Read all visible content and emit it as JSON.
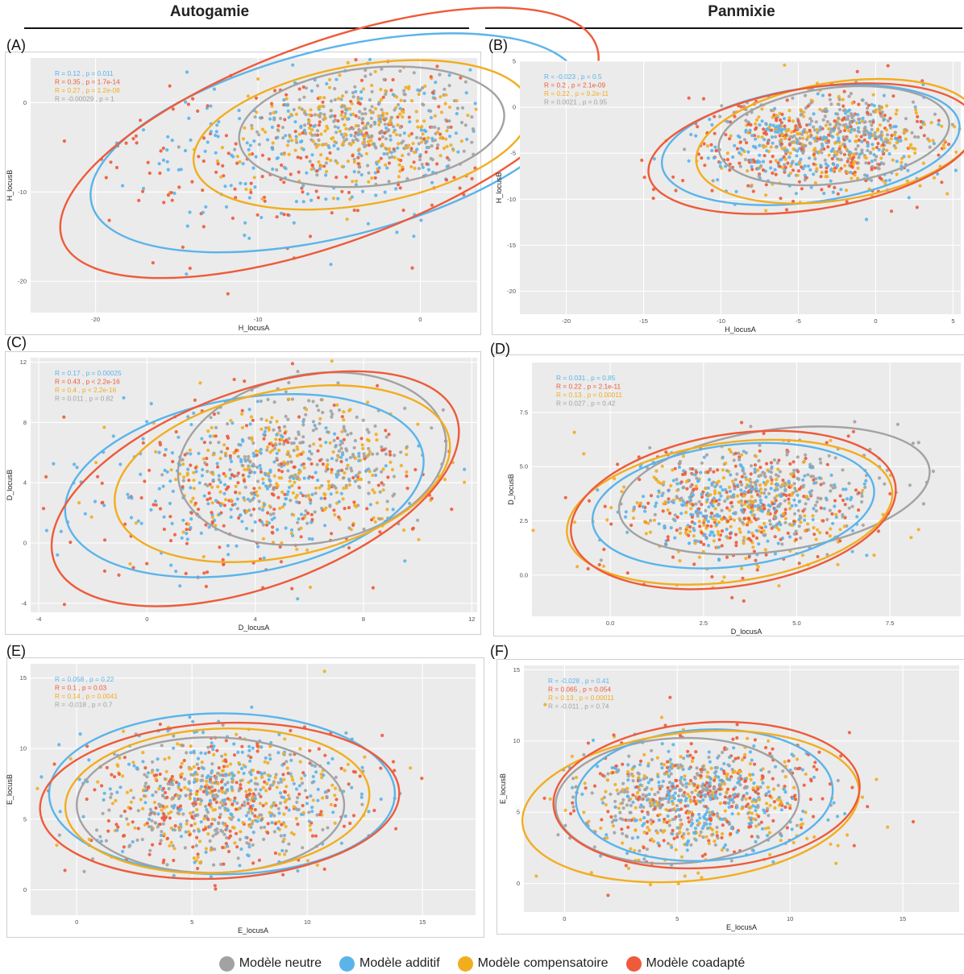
{
  "columns": {
    "left_title": "Autogamie",
    "right_title": "Panmixie"
  },
  "legend": [
    {
      "label": "Modèle neutre",
      "color": "#a2a2a2"
    },
    {
      "label": "Modèle additif",
      "color": "#5ab4ea"
    },
    {
      "label": "Modèle compensatoire",
      "color": "#f2ad1f"
    },
    {
      "label": "Modèle coadapté",
      "color": "#ee5a3a"
    }
  ],
  "chart_data": [
    {
      "panel": "(A)",
      "type": "scatter",
      "xlabel": "H_locusA",
      "ylabel": "H_locusB",
      "xlim": [
        -24,
        3.5
      ],
      "ylim": [
        -23.5,
        5
      ],
      "xticks": [
        -20,
        -10,
        0
      ],
      "yticks": [
        -20,
        -10,
        0
      ],
      "stats": [
        {
          "series": "Modèle additif",
          "text": "R = 0.12 , p = 0.011"
        },
        {
          "series": "Modèle coadapté",
          "text": "R = 0.35 , p = 1.7e-14"
        },
        {
          "series": "Modèle compensatoire",
          "text": "R = 0.27 , p = 1.2e-08"
        },
        {
          "series": "Modèle neutre",
          "text": "R = -0.00029 , p = 1"
        }
      ],
      "ellipses": [
        {
          "series": "Modèle neutre",
          "cx": -3,
          "cy": -2.7,
          "rx": 8.2,
          "ry": 6.6,
          "angle": -6
        },
        {
          "series": "Modèle additif",
          "cx": -5.2,
          "cy": -4.5,
          "rx": 15.5,
          "ry": 10.5,
          "angle": -14
        },
        {
          "series": "Modèle compensatoire",
          "cx": -3.6,
          "cy": -3.6,
          "rx": 10.5,
          "ry": 7.8,
          "angle": -10
        },
        {
          "series": "Modèle coadapté",
          "cx": -5.6,
          "cy": -4.5,
          "rx": 17.5,
          "ry": 11.2,
          "angle": -20
        }
      ]
    },
    {
      "panel": "(B)",
      "type": "scatter",
      "xlabel": "H_locusA",
      "ylabel": "H_locusB",
      "xlim": [
        -23,
        5.5
      ],
      "ylim": [
        -22.5,
        5
      ],
      "xticks": [
        -20,
        -15,
        -10,
        -5,
        0,
        5
      ],
      "yticks": [
        -20,
        -15,
        -10,
        -5,
        0,
        5
      ],
      "stats": [
        {
          "series": "Modèle additif",
          "text": "R = -0.023 , p = 0.5"
        },
        {
          "series": "Modèle coadapté",
          "text": "R = 0.2 , p = 2.1e-09"
        },
        {
          "series": "Modèle compensatoire",
          "text": "R = 0.22 , p = 9.2e-11"
        },
        {
          "series": "Modèle neutre",
          "text": "R = 0.0021 , p = 0.95"
        }
      ],
      "ellipses": [
        {
          "series": "Modèle neutre",
          "cx": -2.7,
          "cy": -3.1,
          "rx": 7.5,
          "ry": 5.2,
          "angle": -7
        },
        {
          "series": "Modèle additif",
          "cx": -4.2,
          "cy": -4.1,
          "rx": 9.7,
          "ry": 6.2,
          "angle": -8
        },
        {
          "series": "Modèle compensatoire",
          "cx": -2.5,
          "cy": -3.7,
          "rx": 9.2,
          "ry": 6.4,
          "angle": -9
        },
        {
          "series": "Modèle coadapté",
          "cx": -4.1,
          "cy": -4.5,
          "rx": 10.7,
          "ry": 6.6,
          "angle": -9
        }
      ]
    },
    {
      "panel": "(C)",
      "type": "scatter",
      "xlabel": "D_locusA",
      "ylabel": "D_locusB",
      "xlim": [
        -4.3,
        12.2
      ],
      "ylim": [
        -4.6,
        12.3
      ],
      "xticks": [
        -4,
        0,
        4,
        8,
        12
      ],
      "yticks": [
        -4,
        0,
        4,
        8,
        12
      ],
      "stats": [
        {
          "series": "Modèle additif",
          "text": "R = 0.17 , p = 0.00025"
        },
        {
          "series": "Modèle coadapté",
          "text": "R = 0.43 , p < 2.2e-16"
        },
        {
          "series": "Modèle compensatoire",
          "text": "R = 0.4 , p < 2.2e-16"
        },
        {
          "series": "Modèle neutre",
          "text": "R = 0.011 , p = 0.82"
        }
      ],
      "ellipses": [
        {
          "series": "Modèle neutre",
          "cx": 6.1,
          "cy": 5.6,
          "rx": 5.0,
          "ry": 5.6,
          "angle": -10
        },
        {
          "series": "Modèle additif",
          "cx": 3.6,
          "cy": 3.8,
          "rx": 6.7,
          "ry": 5.8,
          "angle": -10
        },
        {
          "series": "Modèle compensatoire",
          "cx": 5.0,
          "cy": 4.6,
          "rx": 6.3,
          "ry": 5.5,
          "angle": -12
        },
        {
          "series": "Modèle coadapté",
          "cx": 4.0,
          "cy": 3.6,
          "rx": 7.9,
          "ry": 6.5,
          "angle": -20
        }
      ]
    },
    {
      "panel": "(D)",
      "type": "scatter",
      "xlabel": "D_locusA",
      "ylabel": "D_locusB",
      "xlim": [
        -2.1,
        9.4
      ],
      "ylim": [
        -1.9,
        9.8
      ],
      "xticks": [
        0.0,
        2.5,
        5.0,
        7.5
      ],
      "yticks": [
        0.0,
        2.5,
        5.0,
        7.5
      ],
      "yticklabels": [
        "0.0",
        "2.5",
        "5.0",
        "7.5"
      ],
      "xticklabels": [
        "0.0",
        "2.5",
        "5.0",
        "7.5"
      ],
      "stats": [
        {
          "series": "Modèle additif",
          "text": "R = 0.031 , p = 0.85"
        },
        {
          "series": "Modèle coadapté",
          "text": "R = 0.22 , p = 2.1e-11"
        },
        {
          "series": "Modèle compensatoire",
          "text": "R = 0.13 , p = 0.00011"
        },
        {
          "series": "Modèle neutre",
          "text": "R = 0.027 , p = 0.42"
        }
      ],
      "ellipses": [
        {
          "series": "Modèle neutre",
          "cx": 4.4,
          "cy": 3.9,
          "rx": 4.2,
          "ry": 2.8,
          "angle": -8
        },
        {
          "series": "Modèle additif",
          "cx": 3.3,
          "cy": 3.2,
          "rx": 3.8,
          "ry": 2.8,
          "angle": -7
        },
        {
          "series": "Modèle compensatoire",
          "cx": 3.2,
          "cy": 2.9,
          "rx": 4.4,
          "ry": 3.2,
          "angle": -8
        },
        {
          "series": "Modèle coadapté",
          "cx": 3.3,
          "cy": 3.0,
          "rx": 4.4,
          "ry": 3.5,
          "angle": -9
        }
      ]
    },
    {
      "panel": "(E)",
      "type": "scatter",
      "xlabel": "E_locusA",
      "ylabel": "E_locusB",
      "xlim": [
        -2,
        17.3
      ],
      "ylim": [
        -1.8,
        16
      ],
      "xticks": [
        0,
        5,
        10,
        15
      ],
      "yticks": [
        0,
        5,
        10,
        15
      ],
      "stats": [
        {
          "series": "Modèle additif",
          "text": "R = 0.058 , p = 0.22"
        },
        {
          "series": "Modèle coadapté",
          "text": "R = 0.1 , p = 0.03"
        },
        {
          "series": "Modèle compensatoire",
          "text": "R = 0.14 , p = 0.0041"
        },
        {
          "series": "Modèle neutre",
          "text": "R = -0.018 , p = 0.7"
        }
      ],
      "ellipses": [
        {
          "series": "Modèle neutre",
          "cx": 5.8,
          "cy": 6.0,
          "rx": 5.8,
          "ry": 4.8,
          "angle": 0
        },
        {
          "series": "Modèle additif",
          "cx": 6.3,
          "cy": 6.8,
          "rx": 7.5,
          "ry": 5.7,
          "angle": 0
        },
        {
          "series": "Modèle compensatoire",
          "cx": 6.1,
          "cy": 6.3,
          "rx": 6.6,
          "ry": 5.1,
          "angle": -3
        },
        {
          "series": "Modèle coadapté",
          "cx": 6.2,
          "cy": 6.3,
          "rx": 7.8,
          "ry": 5.5,
          "angle": -3
        }
      ]
    },
    {
      "panel": "(F)",
      "type": "scatter",
      "xlabel": "E_locusA",
      "ylabel": "E_locusB",
      "xlim": [
        -1.8,
        17.5
      ],
      "ylim": [
        -2,
        15.3
      ],
      "xticks": [
        0,
        5,
        10,
        15
      ],
      "yticks": [
        0,
        5,
        10,
        15
      ],
      "stats": [
        {
          "series": "Modèle additif",
          "text": "R = -0.028 , p = 0.41"
        },
        {
          "series": "Modèle coadapté",
          "text": "R = 0.065 , p = 0.054"
        },
        {
          "series": "Modèle compensatoire",
          "text": "R = 0.13 , p = 0.00011"
        },
        {
          "series": "Modèle neutre",
          "text": "R = -0.011 , p = 0.74"
        }
      ],
      "ellipses": [
        {
          "series": "Modèle neutre",
          "cx": 5.0,
          "cy": 5.8,
          "rx": 5.4,
          "ry": 4.4,
          "angle": -3
        },
        {
          "series": "Modèle additif",
          "cx": 6.2,
          "cy": 6.2,
          "rx": 5.7,
          "ry": 4.6,
          "angle": -3
        },
        {
          "series": "Modèle compensatoire",
          "cx": 5.6,
          "cy": 5.4,
          "rx": 7.5,
          "ry": 5.2,
          "angle": -6
        },
        {
          "series": "Modèle coadapté",
          "cx": 6.3,
          "cy": 6.2,
          "rx": 6.8,
          "ry": 5.1,
          "angle": -4
        }
      ]
    }
  ]
}
